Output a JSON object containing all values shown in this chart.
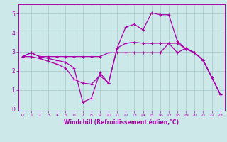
{
  "xlabel": "Windchill (Refroidissement éolien,°C)",
  "bg_color": "#cde8e8",
  "line_color": "#aa00aa",
  "grid_color": "#aacccc",
  "xlim": [
    -0.5,
    23.5
  ],
  "ylim": [
    -0.1,
    5.5
  ],
  "xticks": [
    0,
    1,
    2,
    3,
    4,
    5,
    6,
    7,
    8,
    9,
    10,
    11,
    12,
    13,
    14,
    15,
    16,
    17,
    18,
    19,
    20,
    21,
    22,
    23
  ],
  "yticks": [
    0,
    1,
    2,
    3,
    4,
    5
  ],
  "line1_x": [
    0,
    1,
    2,
    3,
    4,
    5,
    6,
    7,
    8,
    9,
    10,
    11,
    12,
    13,
    14,
    15,
    16,
    17,
    18,
    19,
    20,
    21,
    22,
    23
  ],
  "line1_y": [
    2.75,
    2.95,
    2.75,
    2.75,
    2.75,
    2.75,
    2.75,
    2.75,
    2.75,
    2.75,
    2.95,
    2.95,
    2.95,
    2.95,
    2.95,
    2.95,
    2.95,
    3.45,
    2.95,
    3.2,
    2.95,
    2.55,
    1.65,
    0.75
  ],
  "line2_x": [
    0,
    1,
    2,
    3,
    4,
    5,
    6,
    7,
    8,
    9,
    10,
    11,
    12,
    13,
    14,
    15,
    16,
    17,
    18,
    19,
    20,
    21,
    22,
    23
  ],
  "line2_y": [
    2.75,
    2.95,
    2.75,
    2.65,
    2.55,
    2.45,
    2.15,
    0.35,
    0.55,
    1.9,
    1.35,
    3.2,
    4.3,
    4.45,
    4.15,
    5.05,
    4.95,
    4.95,
    3.55,
    3.15,
    2.95,
    2.55,
    1.65,
    0.75
  ],
  "line3_x": [
    0,
    1,
    2,
    3,
    4,
    5,
    6,
    7,
    8,
    9,
    10,
    11,
    12,
    13,
    14,
    15,
    16,
    17,
    18,
    19,
    20,
    21,
    22,
    23
  ],
  "line3_y": [
    2.75,
    2.75,
    2.65,
    2.5,
    2.35,
    2.15,
    1.55,
    1.35,
    1.3,
    1.75,
    1.35,
    3.2,
    3.45,
    3.5,
    3.45,
    3.45,
    3.45,
    3.45,
    3.45,
    3.15,
    2.95,
    2.55,
    1.65,
    0.75
  ]
}
